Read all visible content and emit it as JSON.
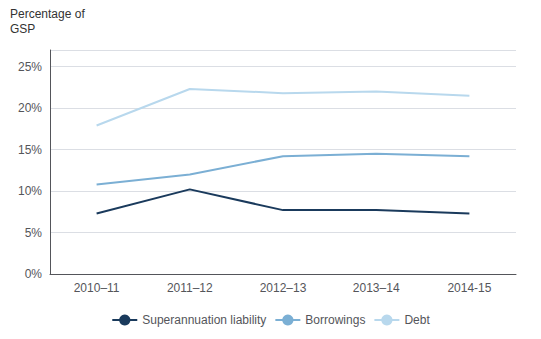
{
  "chart_data": {
    "type": "line",
    "ylabel": "Percentage of\nGSP",
    "categories": [
      "2010–11",
      "2011–12",
      "2012–13",
      "2013–14",
      "2014-15"
    ],
    "series": [
      {
        "name": "Superannuation liability",
        "color": "#1a3a5c",
        "values": [
          7.3,
          10.2,
          7.7,
          7.7,
          7.3
        ]
      },
      {
        "name": "Borrowings",
        "color": "#7bafd4",
        "values": [
          10.8,
          12.0,
          14.2,
          14.5,
          14.2
        ]
      },
      {
        "name": "Debt",
        "color": "#b8d8ed",
        "values": [
          17.9,
          22.3,
          21.8,
          22.0,
          21.5
        ]
      }
    ],
    "ylim": [
      0,
      27
    ],
    "yticks": [
      {
        "value": 0,
        "label": "0%"
      },
      {
        "value": 5,
        "label": "5%"
      },
      {
        "value": 10,
        "label": "10%"
      },
      {
        "value": 15,
        "label": "15%"
      },
      {
        "value": 20,
        "label": "20%"
      },
      {
        "value": 25,
        "label": "25%"
      }
    ],
    "grid": true,
    "legend": "bottom"
  }
}
